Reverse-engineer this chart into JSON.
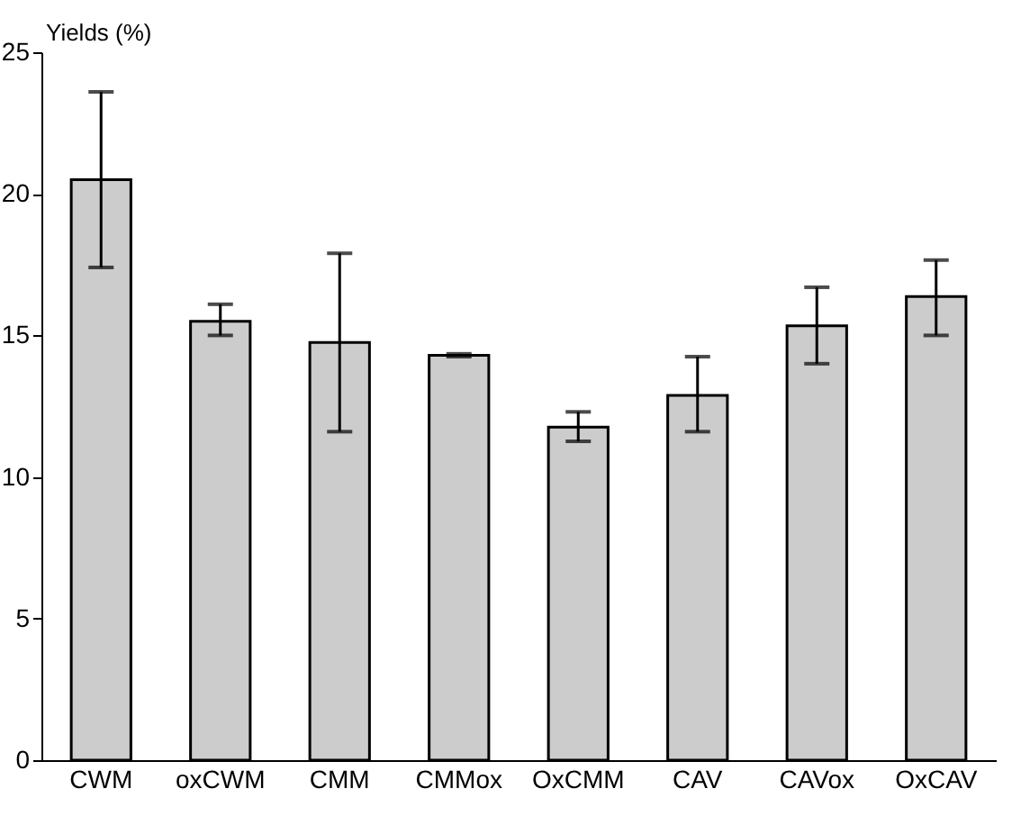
{
  "chart_data": {
    "type": "bar",
    "ylabel": "Yields (%)",
    "categories": [
      "CWM",
      "oxCWM",
      "CMM",
      "CMMox",
      "OxCMM",
      "CAV",
      "CAVox",
      "OxCAV"
    ],
    "values": [
      20.5,
      15.5,
      14.75,
      14.3,
      11.76,
      12.88,
      15.34,
      16.37
    ],
    "errors": [
      [
        17.4,
        23.6
      ],
      [
        15.0,
        16.1
      ],
      [
        11.6,
        17.9
      ],
      [
        14.25,
        14.35
      ],
      [
        11.26,
        12.3
      ],
      [
        11.6,
        14.25
      ],
      [
        14.0,
        16.7
      ],
      [
        15.0,
        17.66
      ]
    ],
    "color": "#cccccc",
    "ylim": [
      0,
      25
    ],
    "yticks": [
      0,
      5,
      10,
      15,
      20,
      25
    ],
    "grid": false
  }
}
